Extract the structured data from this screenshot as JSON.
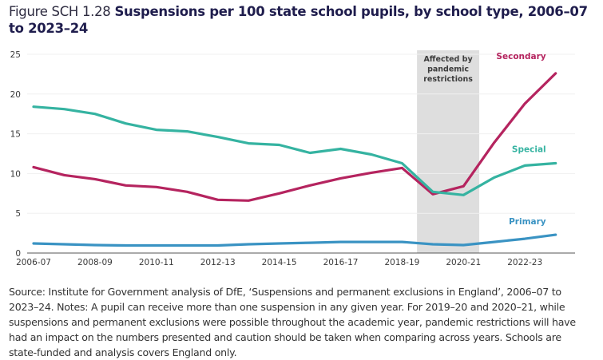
{
  "title": {
    "figure_label": "Figure SCH 1.28",
    "main": "Suspensions per 100 state school pupils, by school type, 2006–07 to 2023–24"
  },
  "notes": "Source: Institute for Government analysis of DfE, ‘Suspensions and permanent exclusions in England’, 2006–07 to 2023–24. Notes: A pupil can receive more than one suspension in any given year. For 2019–20 and 2020–21, while suspensions and permanent exclusions were possible throughout the academic year, pandemic restrictions will have had an impact on the numbers presented and caution should be taken when comparing across years. Schools are state-funded and analysis covers England only.",
  "chart_data": {
    "type": "line",
    "title": "Suspensions per 100 state school pupils, by school type, 2006–07 to 2023–24",
    "xlabel": "",
    "ylabel": "",
    "ylim": [
      0,
      25
    ],
    "yticks": [
      0,
      5,
      10,
      15,
      20,
      25
    ],
    "x": [
      "2006-07",
      "2007-08",
      "2008-09",
      "2009-10",
      "2010-11",
      "2011-12",
      "2012-13",
      "2013-14",
      "2014-15",
      "2015-16",
      "2016-17",
      "2017-18",
      "2018-19",
      "2019-20",
      "2020-21",
      "2021-22",
      "2022-23",
      "2023-24"
    ],
    "xtick_labels": [
      "2006-07",
      "2008-09",
      "2010-11",
      "2012-13",
      "2014-15",
      "2016-17",
      "2018-19",
      "2020-21",
      "2022-23"
    ],
    "grid": "horizontal",
    "legend": "direct labels at line ends (right)",
    "annotation": {
      "text_lines": [
        "Affected by",
        "pandemic",
        "restrictions"
      ],
      "span": [
        "2019-20",
        "2020-21"
      ],
      "color": "#dedede"
    },
    "series": [
      {
        "name": "Secondary",
        "color": "#b5245f",
        "values": [
          10.8,
          9.8,
          9.3,
          8.5,
          8.3,
          7.7,
          6.7,
          6.6,
          7.5,
          8.5,
          9.4,
          10.1,
          10.7,
          7.4,
          8.4,
          13.9,
          18.8,
          22.6
        ]
      },
      {
        "name": "Special",
        "color": "#35b3a1",
        "values": [
          18.4,
          18.1,
          17.5,
          16.3,
          15.5,
          15.3,
          14.6,
          13.8,
          13.6,
          12.6,
          13.1,
          12.4,
          11.3,
          7.7,
          7.3,
          9.5,
          11.0,
          11.3
        ]
      },
      {
        "name": "Primary",
        "color": "#3a93c3",
        "values": [
          1.2,
          1.1,
          1.0,
          0.95,
          0.95,
          0.95,
          0.95,
          1.1,
          1.2,
          1.3,
          1.4,
          1.4,
          1.4,
          1.1,
          1.0,
          1.4,
          1.8,
          2.3
        ]
      }
    ]
  }
}
